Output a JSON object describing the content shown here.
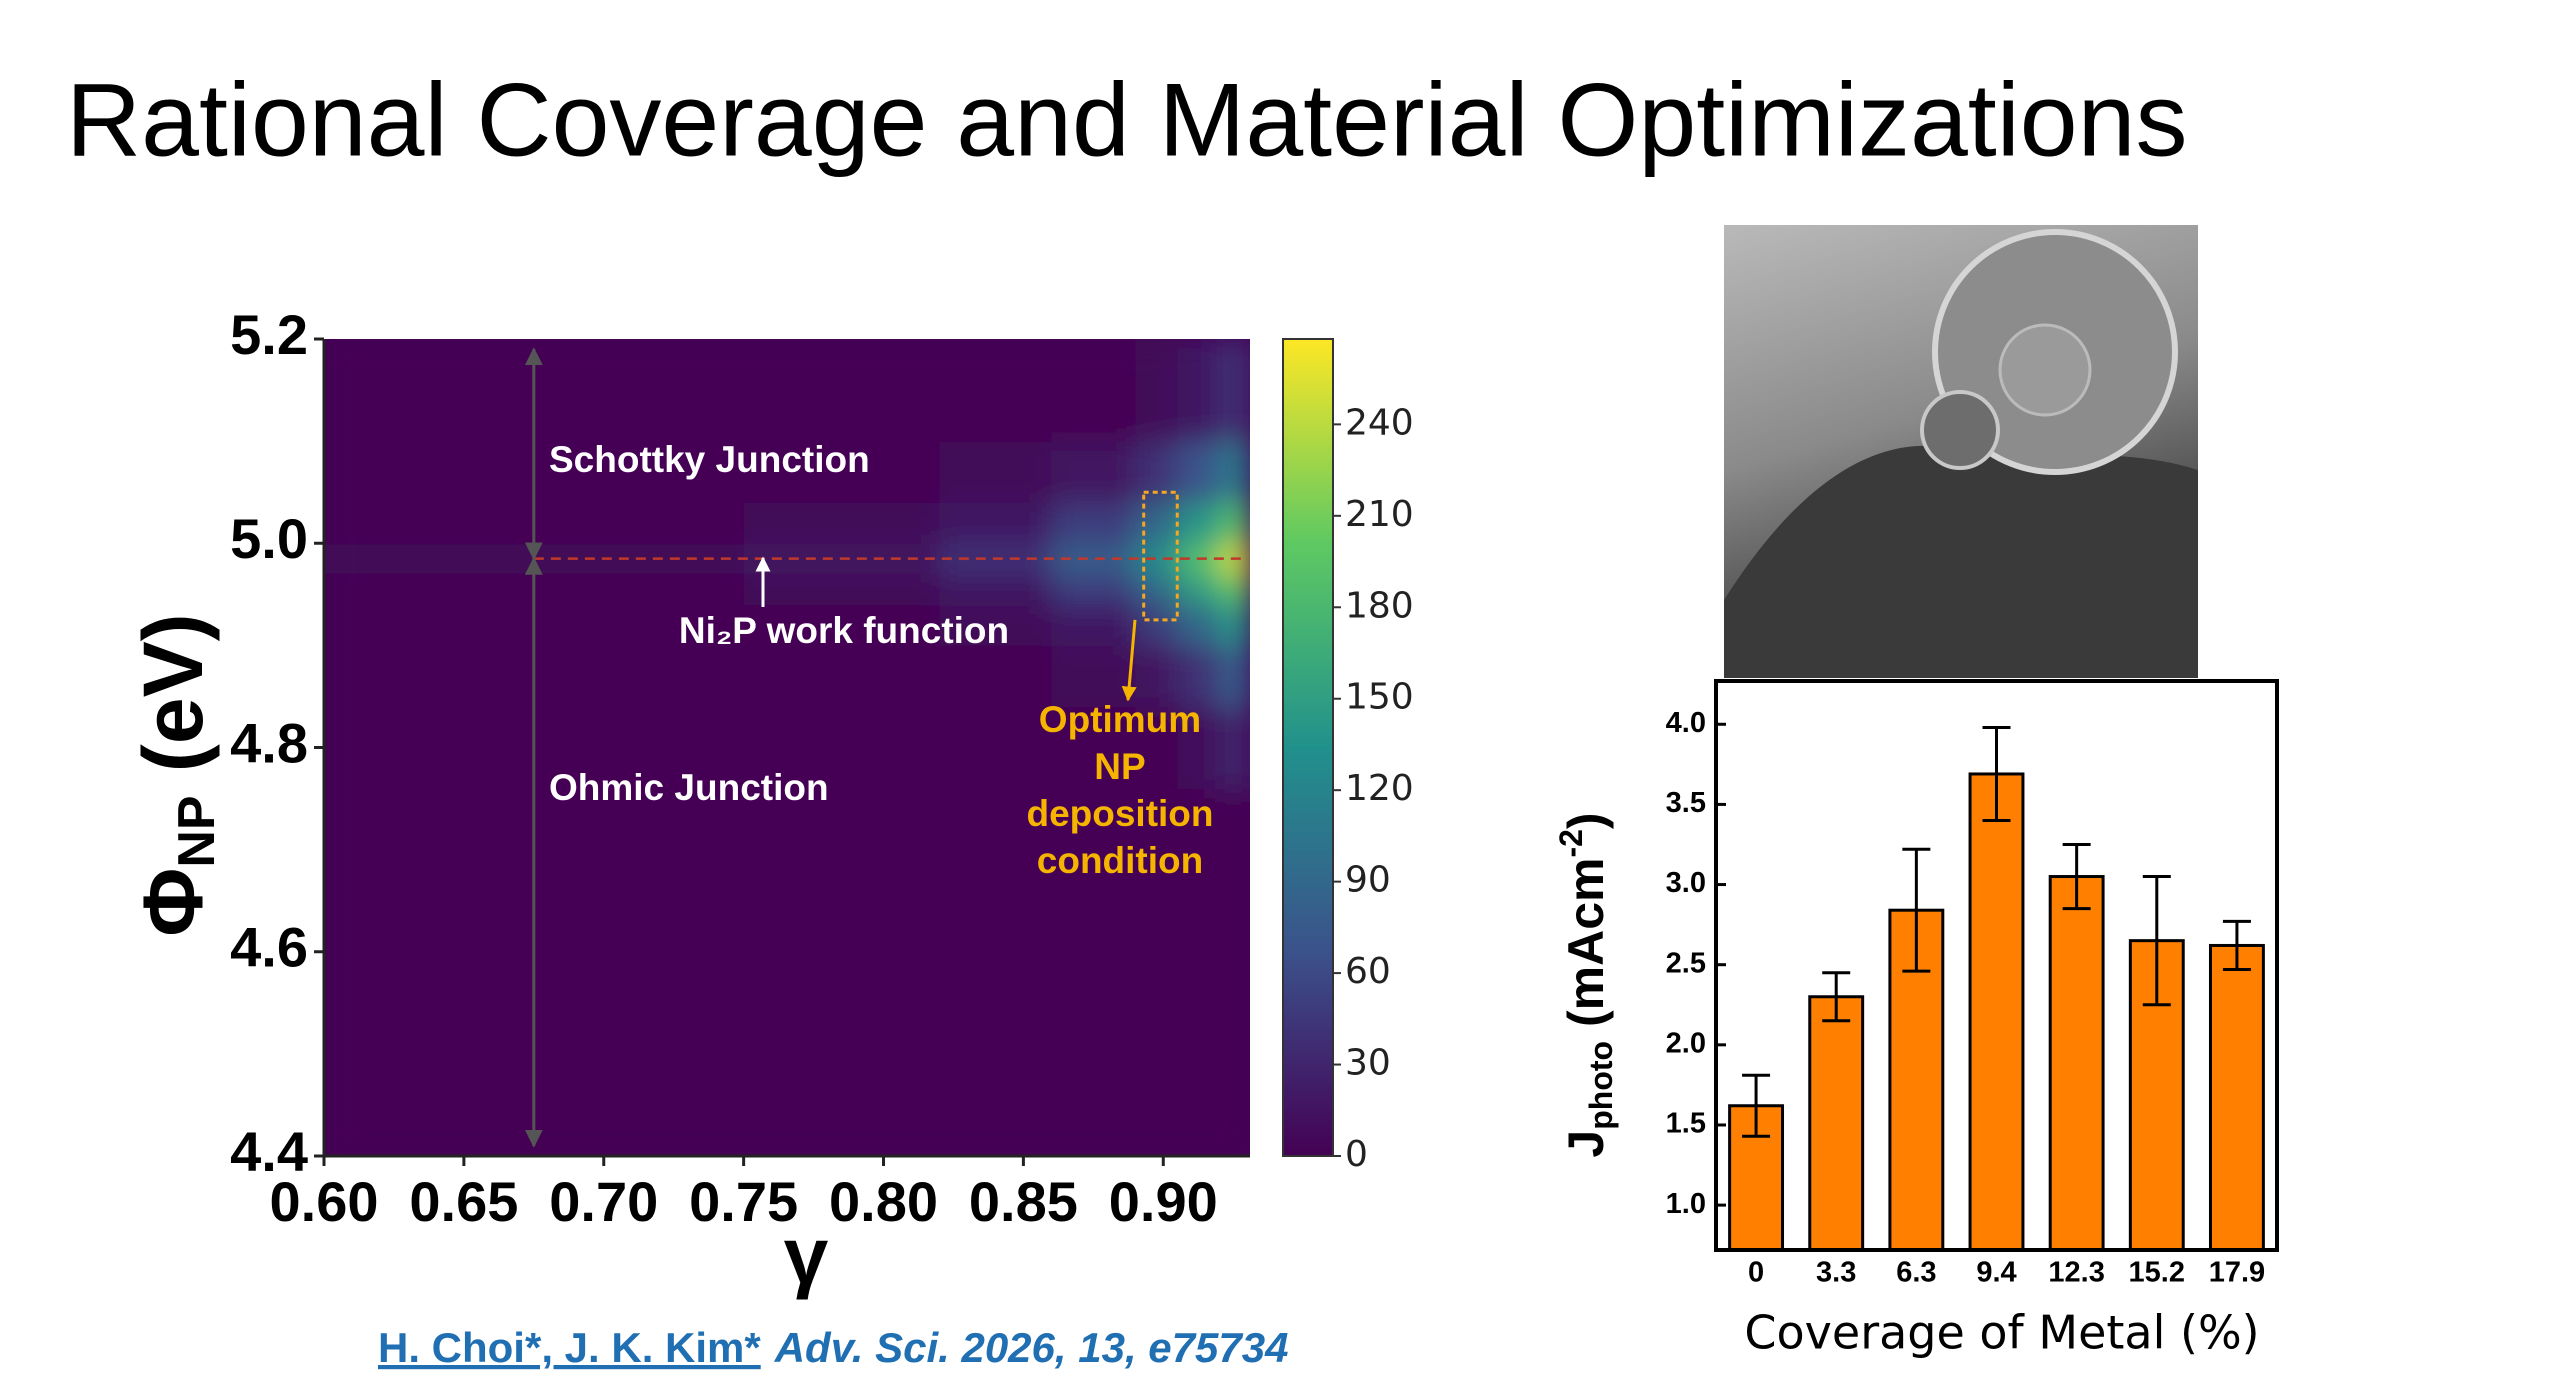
{
  "title": "Rational Coverage and Material Optimizations",
  "citation": {
    "authors": "H. Choi*, J. K. Kim*",
    "journal": "Adv. Sci. 2026, 13, e75734"
  },
  "chart_data": [
    {
      "type": "heatmap",
      "xlabel": "γ",
      "ylabel": {
        "symbol": "Φ",
        "subscript": "NP",
        "unit": " (eV)"
      },
      "xbins": [
        0.6,
        0.75,
        0.82,
        0.86,
        0.89,
        0.905,
        0.92,
        0.931
      ],
      "ybins": [
        4.4,
        4.76,
        4.84,
        4.9,
        4.94,
        4.97,
        5.0,
        5.04,
        5.1,
        5.2
      ],
      "z": [
        [
          0,
          0,
          0,
          0,
          0,
          0,
          0
        ],
        [
          0,
          0,
          0,
          0,
          0,
          10,
          30
        ],
        [
          0,
          0,
          0,
          5,
          15,
          40,
          80
        ],
        [
          0,
          0,
          5,
          20,
          50,
          90,
          140
        ],
        [
          0,
          5,
          20,
          50,
          90,
          150,
          200
        ],
        [
          5,
          15,
          40,
          80,
          130,
          190,
          250
        ],
        [
          0,
          5,
          20,
          50,
          90,
          140,
          190
        ],
        [
          0,
          0,
          5,
          15,
          40,
          70,
          110
        ],
        [
          0,
          0,
          0,
          0,
          5,
          20,
          40
        ]
      ],
      "colormap": "viridis",
      "clim": [
        0,
        268
      ],
      "cticks": [
        0,
        30,
        60,
        90,
        120,
        150,
        180,
        210,
        240
      ],
      "xlim": [
        0.6,
        0.931
      ],
      "xticks": [
        {
          "value": 0.6,
          "label": "0.60"
        },
        0.65,
        {
          "value": 0.7,
          "label": "0.70"
        },
        0.75,
        {
          "value": 0.8,
          "label": "0.80"
        },
        0.85,
        {
          "value": 0.9,
          "label": "0.90"
        }
      ],
      "ylim": [
        4.4,
        5.2
      ],
      "yticks": [
        4.4,
        4.6,
        4.8,
        {
          "value": 5,
          "label": "5.0"
        },
        5.2
      ],
      "hline": 4.985,
      "vline": 0.675,
      "highlight_box": {
        "x": [
          0.893,
          0.905
        ],
        "y": [
          4.925,
          5.05
        ]
      },
      "annotations": [
        "Schottky Junction",
        "Ni₂P work function",
        "Ohmic Junction"
      ],
      "optimum_label": [
        "Optimum",
        "NP",
        "deposition",
        "condition"
      ]
    },
    {
      "type": "bar",
      "xlabel": "Coverage of Metal (%)",
      "ylabel": {
        "symbol": "J",
        "subscript": "photo",
        "unit": " (mAcm",
        "superscript": "-2",
        "close": ")"
      },
      "categories": [
        "0",
        "3.3",
        "6.3",
        "9.4",
        "12.3",
        "15.2",
        "17.9"
      ],
      "values": [
        1.62,
        2.3,
        2.84,
        3.69,
        3.05,
        2.65,
        2.62
      ],
      "errors": [
        0.19,
        0.15,
        0.38,
        0.29,
        0.2,
        0.4,
        0.15
      ],
      "color": "#ff8000",
      "ylim": [
        0.72,
        4.27
      ],
      "yticks": [
        {
          "value": 1,
          "label": "1.0"
        },
        1.5,
        {
          "value": 2,
          "label": "2.0"
        },
        2.5,
        {
          "value": 3,
          "label": "3.0"
        },
        3.5,
        {
          "value": 4,
          "label": "4.0"
        }
      ]
    }
  ]
}
